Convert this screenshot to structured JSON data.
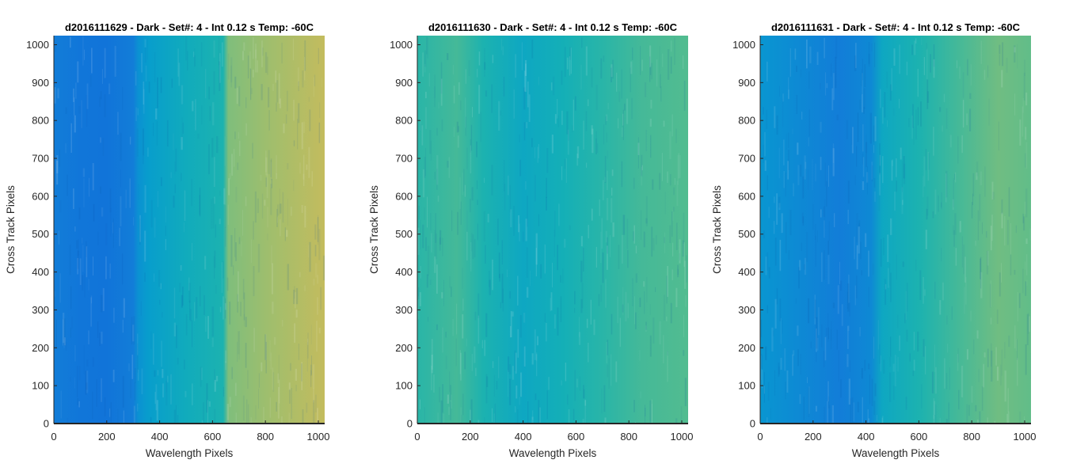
{
  "figure": {
    "background": "#ffffff"
  },
  "chart_data": [
    {
      "type": "heatmap",
      "title": "d2016111629 - Dark - Set#: 4 - Int 0.12 s Temp: -60C",
      "xlabel": "Wavelength Pixels",
      "ylabel": "Cross Track Pixels",
      "xlim": [
        0,
        1024
      ],
      "ylim": [
        0,
        1024
      ],
      "xticks": [
        0,
        200,
        400,
        600,
        800,
        1000
      ],
      "yticks": [
        0,
        100,
        200,
        300,
        400,
        500,
        600,
        700,
        800,
        900,
        1000
      ],
      "colormap": "parula",
      "column_profile": {
        "x": [
          0,
          100,
          200,
          300,
          320,
          360,
          500,
          640,
          660,
          800,
          1024
        ],
        "level": [
          0.3,
          0.27,
          0.26,
          0.3,
          0.4,
          0.46,
          0.52,
          0.56,
          0.7,
          0.74,
          0.8
        ]
      },
      "grid": false
    },
    {
      "type": "heatmap",
      "title": "d2016111630 - Dark - Set#: 4 - Int 0.12 s Temp: -60C",
      "xlabel": "Wavelength Pixels",
      "ylabel": "Cross Track Pixels",
      "xlim": [
        0,
        1024
      ],
      "ylim": [
        0,
        1024
      ],
      "xticks": [
        0,
        200,
        400,
        600,
        800,
        1000
      ],
      "yticks": [
        0,
        100,
        200,
        300,
        400,
        500,
        600,
        700,
        800,
        900,
        1000
      ],
      "colormap": "parula",
      "column_profile": {
        "x": [
          0,
          150,
          250,
          400,
          550,
          700,
          850,
          1024
        ],
        "level": [
          0.58,
          0.62,
          0.56,
          0.5,
          0.54,
          0.58,
          0.62,
          0.64
        ]
      },
      "grid": false
    },
    {
      "type": "heatmap",
      "title": "d2016111631 - Dark - Set#: 4 - Int 0.12 s Temp: -60C",
      "xlabel": "Wavelength Pixels",
      "ylabel": "Cross Track Pixels",
      "xlim": [
        0,
        1024
      ],
      "ylim": [
        0,
        1024
      ],
      "xticks": [
        0,
        200,
        400,
        600,
        800,
        1000
      ],
      "yticks": [
        0,
        100,
        200,
        300,
        400,
        500,
        600,
        700,
        800,
        900,
        1000
      ],
      "colormap": "parula",
      "column_profile": {
        "x": [
          0,
          150,
          300,
          420,
          460,
          600,
          750,
          900,
          1024
        ],
        "level": [
          0.42,
          0.36,
          0.3,
          0.36,
          0.5,
          0.56,
          0.62,
          0.68,
          0.66
        ]
      },
      "grid": false
    }
  ]
}
